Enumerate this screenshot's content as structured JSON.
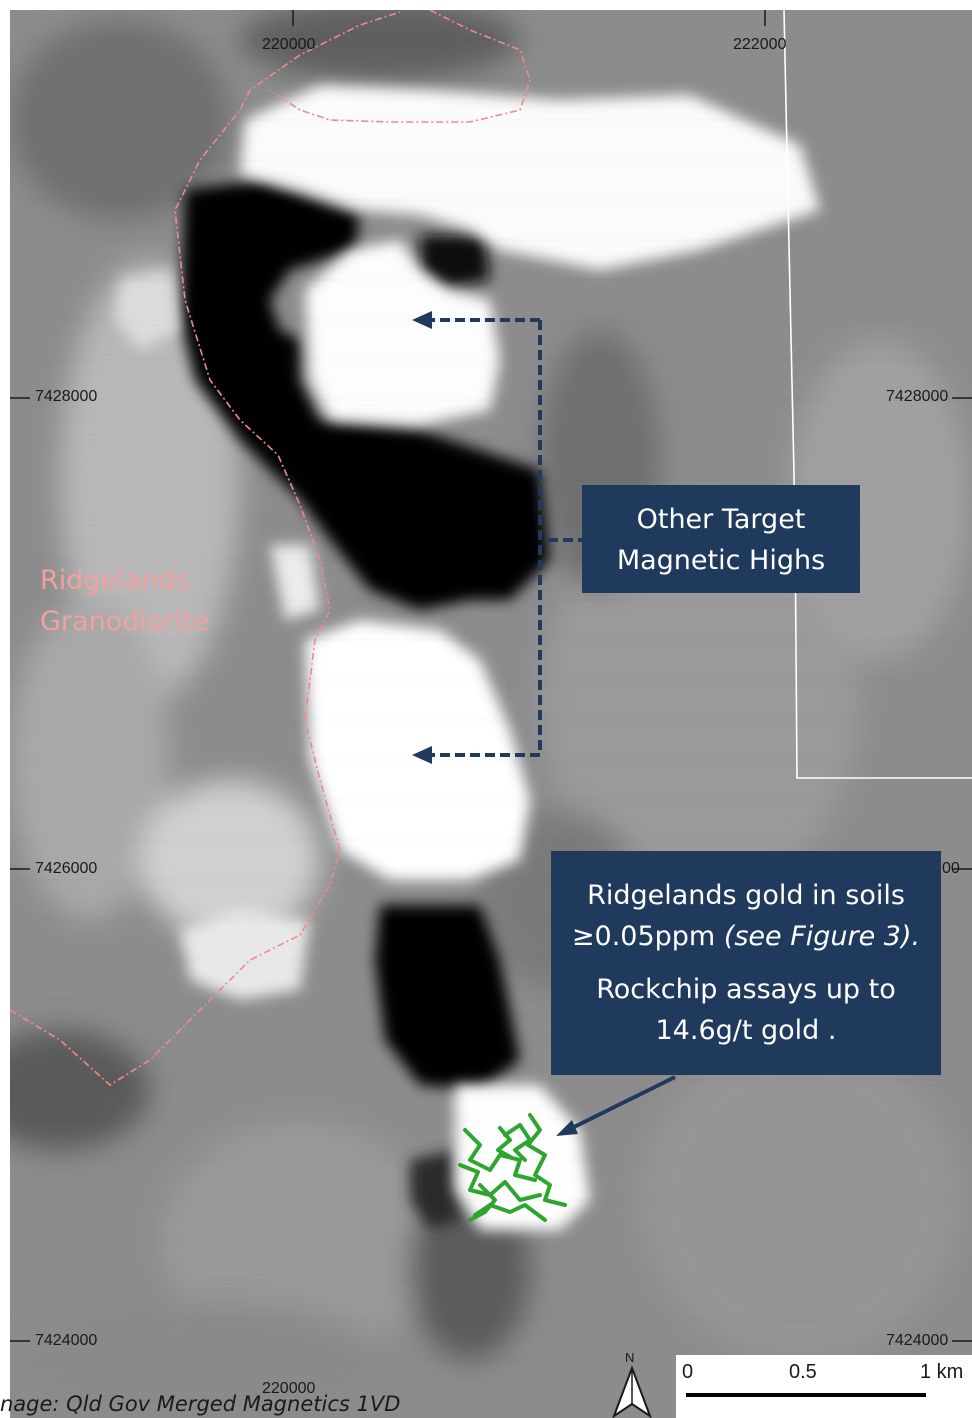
{
  "map": {
    "grid_labels": {
      "easting_left": "220000",
      "easting_right": "222000",
      "easting_bottom": "220000",
      "northing_top_left": "7428000",
      "northing_top_right": "7428000",
      "northing_mid_left": "7426000",
      "northing_mid_right": "00",
      "northing_bottom_left": "7424000",
      "northing_bottom_right": "7424000"
    },
    "geology_label": {
      "line1": "Ridgelands",
      "line2": "Granodiorite"
    },
    "callout_targets": {
      "line1": "Other Target",
      "line2": "Magnetic Highs"
    },
    "callout_gold": {
      "line1": "Ridgelands gold in soils",
      "line2a": "≥0.05ppm ",
      "line2b": "(see Figure 3).",
      "line3": "Rockchip assays up to",
      "line4": "14.6g/t gold ."
    },
    "scale_bar": {
      "label_0": "0",
      "label_mid": "0.5",
      "label_end": "1 km"
    },
    "north_arrow": {
      "label": "N"
    },
    "attribution": "nage: Qld Gov Merged Magnetics 1VD",
    "colors": {
      "callout_bg": "#1f3a5c",
      "arrow": "#1f3a5c",
      "granodiorite_boundary": "#f08a8a",
      "gold_anomaly": "#2ea52e"
    }
  }
}
